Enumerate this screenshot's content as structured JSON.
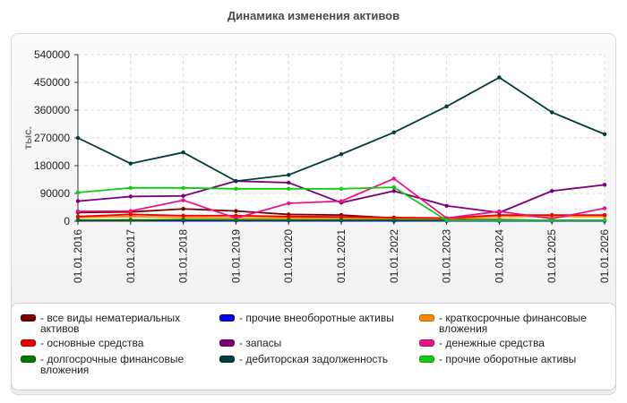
{
  "chart_data": {
    "type": "line",
    "title": "Динамика изменения активов",
    "ylabel": "тыс.",
    "ylim": [
      0,
      540000
    ],
    "y_ticks": [
      "540000",
      "450000",
      "360000",
      "270000",
      "180000",
      "90000",
      "0"
    ],
    "y_tick_values": [
      540000,
      450000,
      360000,
      270000,
      180000,
      90000,
      0
    ],
    "categories": [
      "01.01.2016",
      "01.01.2017",
      "01.01.2018",
      "01.01.2019",
      "01.01.2020",
      "01.01.2021",
      "01.01.2022",
      "01.01.2023",
      "01.01.2024",
      "01.01.2025",
      "01.01.2026"
    ],
    "grid": true,
    "legend_position": "bottom",
    "series": [
      {
        "name": "все виды нематериальных активов",
        "color": "#7a0000",
        "values": [
          28000,
          30000,
          40000,
          33000,
          22000,
          20000,
          10000,
          5000,
          5000,
          3000,
          3000
        ]
      },
      {
        "name": "прочие внеоборотные активы",
        "color": "#0000ee",
        "values": [
          3000,
          4000,
          2000,
          2000,
          2000,
          2000,
          1000,
          1000,
          1000,
          1000,
          1000
        ]
      },
      {
        "name": "краткосрочные финансовые вложения",
        "color": "#ff8800",
        "values": [
          12000,
          15000,
          12000,
          10000,
          10000,
          10000,
          8000,
          8000,
          15000,
          15000,
          15000
        ]
      },
      {
        "name": "основные средства",
        "color": "#ee0000",
        "values": [
          15000,
          22000,
          18000,
          18000,
          15000,
          14000,
          12000,
          10000,
          20000,
          20000,
          20000
        ]
      },
      {
        "name": "запасы",
        "color": "#7a007a",
        "values": [
          65000,
          80000,
          82000,
          130000,
          125000,
          60000,
          98000,
          50000,
          28000,
          98000,
          118000
        ]
      },
      {
        "name": "денежные средства",
        "color": "#ee1289",
        "values": [
          32000,
          33000,
          68000,
          10000,
          58000,
          65000,
          138000,
          10000,
          32000,
          8000,
          42000
        ]
      },
      {
        "name": "долгосрочные финансовые вложения",
        "color": "#007a00",
        "values": [
          4000,
          4000,
          5000,
          4000,
          4000,
          4000,
          4000,
          3000,
          3000,
          3000,
          3000
        ]
      },
      {
        "name": "дебиторская задолженность",
        "color": "#003c3c",
        "values": [
          270000,
          187000,
          223000,
          130000,
          150000,
          217000,
          288000,
          372000,
          466000,
          353000,
          282000
        ]
      },
      {
        "name": "прочие оборотные активы",
        "color": "#11cc11",
        "values": [
          93000,
          108000,
          108000,
          105000,
          105000,
          105000,
          110000,
          3000,
          3000,
          3000,
          3000
        ]
      }
    ]
  },
  "legend": {
    "items": [
      {
        "label": "- все виды нематериальных\nактивов",
        "color": "#7a0000"
      },
      {
        "label": "- основные средства",
        "color": "#ee0000"
      },
      {
        "label": "- долгосрочные финансовые\nвложения",
        "color": "#007a00"
      },
      {
        "label": "- прочие внеоборотные активы",
        "color": "#0000ee"
      },
      {
        "label": "- запасы",
        "color": "#7a007a"
      },
      {
        "label": "- дебиторская задолженность",
        "color": "#003c3c"
      },
      {
        "label": "- краткосрочные финансовые\nвложения",
        "color": "#ff8800"
      },
      {
        "label": "- денежные средства",
        "color": "#ee1289"
      },
      {
        "label": "- прочие оборотные активы",
        "color": "#11cc11"
      }
    ]
  }
}
